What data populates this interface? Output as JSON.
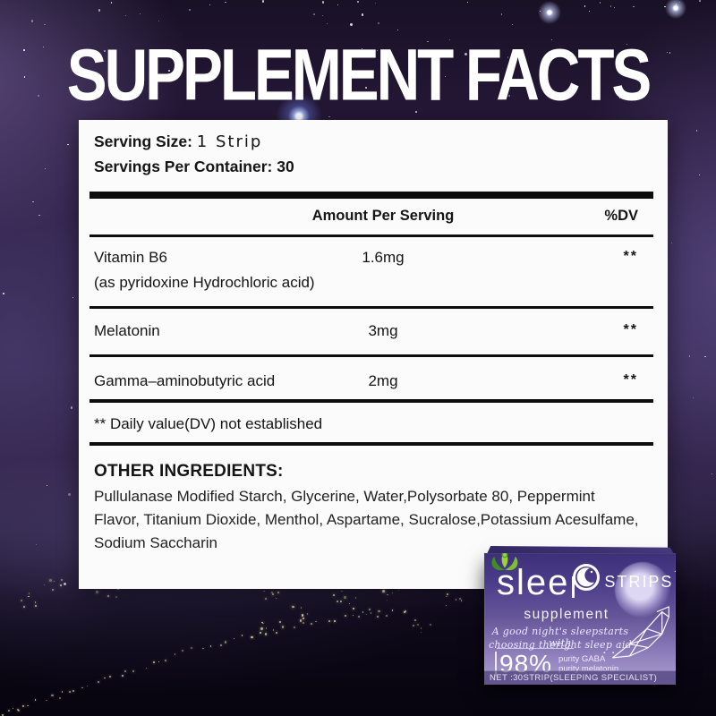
{
  "title": "SUPPLEMENT FACTS",
  "facts": {
    "serving_size_label": "Serving Size:",
    "serving_size_value": "1 Strip",
    "servings_per_container": "Servings Per Container: 30",
    "col_amount": "Amount Per Serving",
    "col_dv": "%DV",
    "rows": [
      {
        "name": "Vitamin B6",
        "sub": "(as pyridoxine Hydrochloric acid)",
        "amount": "1.6mg",
        "dv": "**"
      },
      {
        "name": "Melatonin",
        "sub": "",
        "amount": "3mg",
        "dv": "**"
      },
      {
        "name": "Gamma–aminobutyric acid",
        "sub": "",
        "amount": "2mg",
        "dv": "**"
      }
    ],
    "footnote": "** Daily value(DV) not established",
    "other_title": "OTHER INGREDIENTS:",
    "other_text": "Pullulanase Modified Starch, Glycerine, Water,Polysorbate 80, Peppermint Flavor, Titanium Dioxide, Menthol, Aspartame, Sucralose,Potassium Acesulfame, Sodium Saccharin"
  },
  "box": {
    "brand_prefix": "slee",
    "brand_rest": "STRIPS",
    "sparkle": "✦",
    "supplement": "supplement",
    "slogan1": "A good night's sleepstarts with",
    "slogan2": "choosing theright sleep aid",
    "purity_value": "98%",
    "purity1": "purity GABA",
    "purity2": "purity melatonin",
    "net": "NET :30STRIP(SLEEPING SPECIALIST)"
  },
  "colors": {
    "box_purple": "#4b3c8a",
    "logo_green": "#5aa62c",
    "panel_white": "#fbfbfc"
  }
}
